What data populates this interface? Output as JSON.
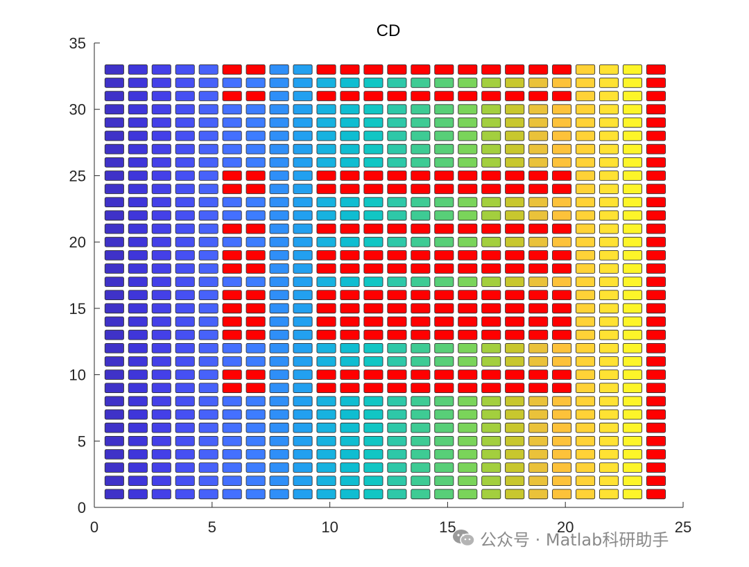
{
  "chart_data": {
    "type": "heatmap",
    "title": "CD",
    "xlabel": "",
    "ylabel": "",
    "xlim": [
      0,
      25
    ],
    "ylim": [
      0,
      35
    ],
    "x_ticks": [
      0,
      5,
      10,
      15,
      20,
      25
    ],
    "y_ticks": [
      0,
      5,
      10,
      15,
      20,
      25,
      30,
      35
    ],
    "grid": false,
    "n_columns": 24,
    "n_rows": 33,
    "x_step": 1,
    "y_step": 1,
    "column_colors": [
      "#3f32c8",
      "#3f36da",
      "#4440e8",
      "#4650f3",
      "#4762fa",
      "#4470ff",
      "#3d7dff",
      "#2f8ff8",
      "#22a0f0",
      "#17b2e0",
      "#0fbdd1",
      "#11c6c4",
      "#2ec8a8",
      "#3ecb94",
      "#58cf78",
      "#7ad45a",
      "#a3cf3e",
      "#c8c72e",
      "#eac23a",
      "#fdc23a",
      "#ffd237",
      "#ffe233",
      "#fdf529",
      "#ff0000"
    ],
    "highlight_color": "#ff0000",
    "highlight_cells": [
      {
        "rows": [
          9,
          10
        ],
        "columns": [
          6,
          7,
          10,
          11,
          12,
          13,
          14,
          15,
          16,
          17,
          18,
          19,
          20
        ]
      },
      {
        "rows": [
          13,
          14
        ],
        "columns": [
          6,
          7,
          10,
          11,
          12,
          13,
          14,
          15,
          16,
          17,
          18,
          19,
          20
        ]
      },
      {
        "rows": [
          15,
          16
        ],
        "columns": [
          6,
          7,
          10,
          11,
          12,
          13,
          14,
          15,
          16,
          17,
          18,
          19,
          20
        ]
      },
      {
        "rows": [
          18,
          19
        ],
        "columns": [
          6,
          7,
          10,
          11,
          12,
          13,
          14,
          15,
          16,
          17,
          18,
          19,
          20
        ]
      },
      {
        "rows": [
          21
        ],
        "columns": [
          6,
          7,
          10,
          11,
          12,
          13,
          14,
          15,
          16,
          17,
          18,
          19,
          20
        ]
      },
      {
        "rows": [
          24,
          25
        ],
        "columns": [
          6,
          7,
          10,
          11,
          12,
          13,
          14,
          15,
          16,
          17,
          18,
          19,
          20
        ]
      },
      {
        "rows": [
          31
        ],
        "columns": [
          6,
          7,
          10,
          11,
          12,
          13,
          14,
          15,
          16,
          17,
          18,
          19,
          20
        ]
      },
      {
        "rows": [
          33
        ],
        "columns": [
          6,
          7,
          10,
          11,
          12,
          13,
          14,
          15,
          16,
          17,
          18,
          19,
          20
        ]
      }
    ],
    "cell_edge_color": "#333333"
  },
  "watermark": {
    "text": "公众号 · Matlab科研助手",
    "icon": "wechat-icon"
  }
}
